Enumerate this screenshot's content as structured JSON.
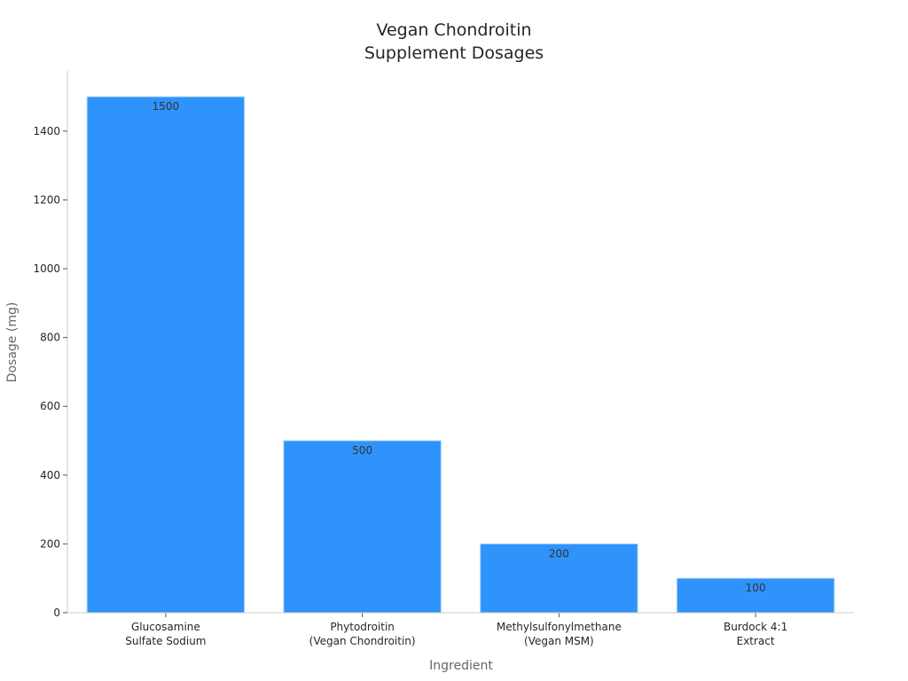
{
  "chart_data": {
    "type": "bar",
    "title": [
      "Vegan Chondroitin",
      "Supplement Dosages"
    ],
    "xlabel": "Ingredient",
    "ylabel": "Dosage (mg)",
    "categories": [
      [
        "Glucosamine",
        "Sulfate Sodium"
      ],
      [
        "Phytodroitin",
        "(Vegan Chondroitin)"
      ],
      [
        "Methylsulfonylmethane",
        "(Vegan MSM)"
      ],
      [
        "Burdock 4:1",
        "Extract"
      ]
    ],
    "values": [
      1500,
      500,
      200,
      100
    ],
    "data_labels": [
      "1500",
      "500",
      "200",
      "100"
    ],
    "yticks": [
      0,
      200,
      400,
      600,
      800,
      1000,
      1200,
      1400
    ],
    "ylim": [
      0,
      1575
    ],
    "grid": false,
    "bar_color": "#2e93fa",
    "bar_edge_color": "#a9d1fb"
  }
}
